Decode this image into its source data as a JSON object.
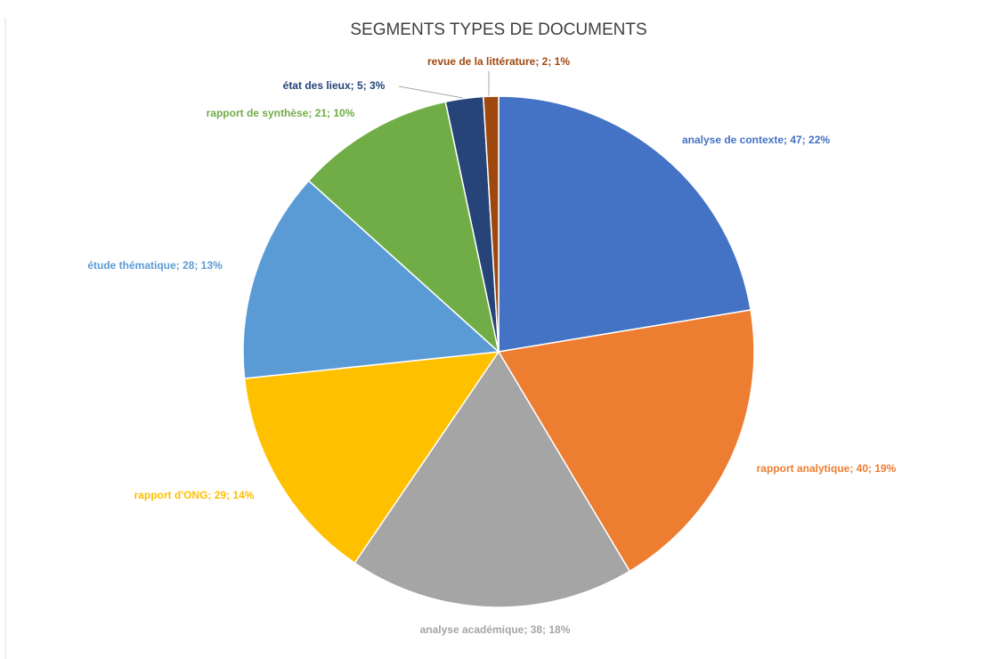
{
  "chart_data": {
    "type": "pie",
    "title": "SEGMENTS TYPES DE DOCUMENTS",
    "values": [
      47,
      40,
      38,
      29,
      28,
      21,
      5,
      2
    ],
    "value_labels": [
      "analyse de contexte; 47; 22%",
      "rapport analytique; 40; 19%",
      "analyse académique; 38; 18%",
      "rapport d'ONG; 29; 14%",
      "étude thématique; 28; 13%",
      "rapport de synthèse; 21; 10%",
      "état des lieux; 5; 3%",
      "revue de la littérature; 2; 1%"
    ],
    "colors": [
      "#4472c4",
      "#ed7d31",
      "#a5a5a5",
      "#ffc000",
      "#5b9bd5",
      "#70ad47",
      "#264478",
      "#9e480e"
    ]
  }
}
